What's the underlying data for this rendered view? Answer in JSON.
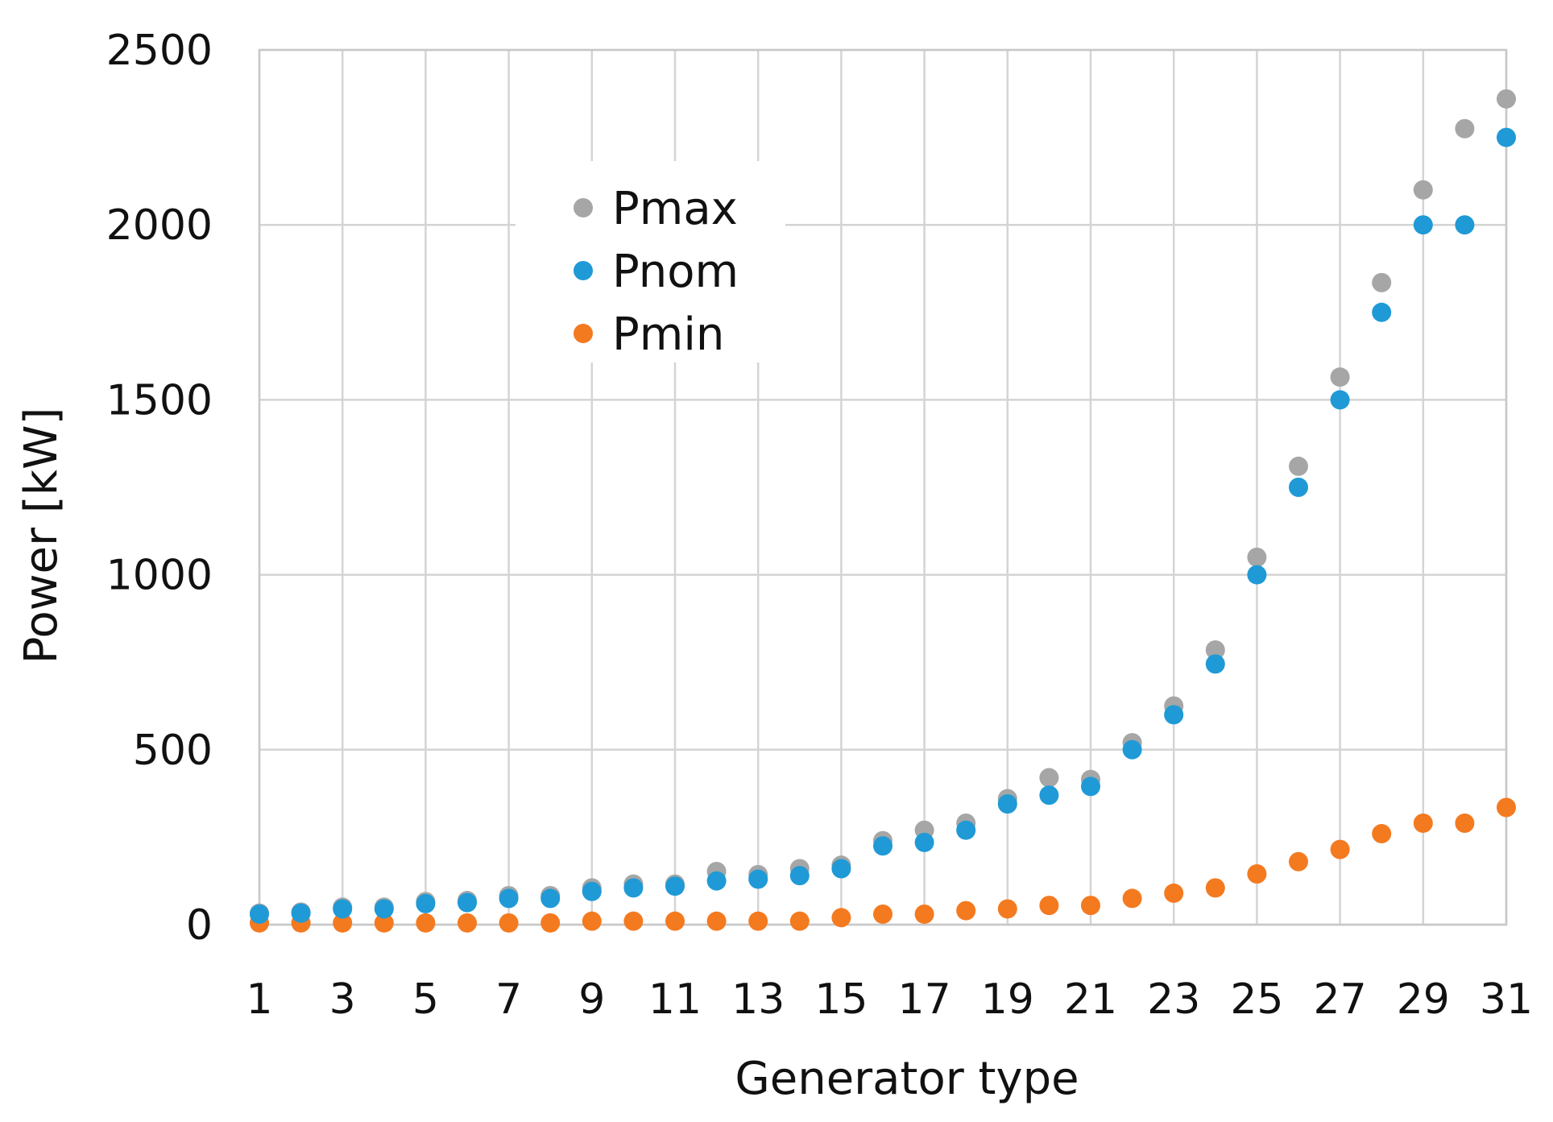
{
  "chart_data": {
    "type": "scatter",
    "title": "",
    "xlabel": "Generator type",
    "ylabel": "Power [kW]",
    "xlim": [
      1,
      31
    ],
    "ylim": [
      0,
      2500
    ],
    "x_ticks": [
      1,
      3,
      5,
      7,
      9,
      11,
      13,
      15,
      17,
      19,
      21,
      23,
      25,
      27,
      29,
      31
    ],
    "y_ticks": [
      0,
      500,
      1000,
      1500,
      2000,
      2500
    ],
    "grid": true,
    "legend_position": "upper-left-inside",
    "x": [
      1,
      2,
      3,
      4,
      5,
      6,
      7,
      8,
      9,
      10,
      11,
      12,
      13,
      14,
      15,
      16,
      17,
      18,
      19,
      20,
      21,
      22,
      23,
      24,
      25,
      26,
      27,
      28,
      29,
      30,
      31
    ],
    "series": [
      {
        "name": "Pmax",
        "color": "#a6a6a6",
        "values": [
          33,
          36,
          50,
          50,
          66,
          69,
          83,
          83,
          105,
          116,
          116,
          152,
          143,
          160,
          170,
          240,
          270,
          290,
          360,
          420,
          415,
          520,
          625,
          785,
          1050,
          1310,
          1565,
          1835,
          2100,
          2275,
          2360
        ]
      },
      {
        "name": "Pnom",
        "color": "#1f9ad6",
        "values": [
          30,
          33,
          45,
          45,
          60,
          63,
          75,
          75,
          95,
          105,
          110,
          125,
          130,
          140,
          160,
          225,
          235,
          270,
          345,
          370,
          395,
          500,
          600,
          745,
          1000,
          1250,
          1500,
          1750,
          2000,
          2000,
          2250
        ]
      },
      {
        "name": "Pmin",
        "color": "#f47a20",
        "values": [
          5,
          5,
          5,
          5,
          5,
          5,
          5,
          5,
          10,
          10,
          10,
          10,
          10,
          10,
          20,
          30,
          30,
          40,
          45,
          55,
          55,
          75,
          90,
          105,
          145,
          180,
          215,
          260,
          290,
          290,
          335
        ]
      }
    ]
  }
}
